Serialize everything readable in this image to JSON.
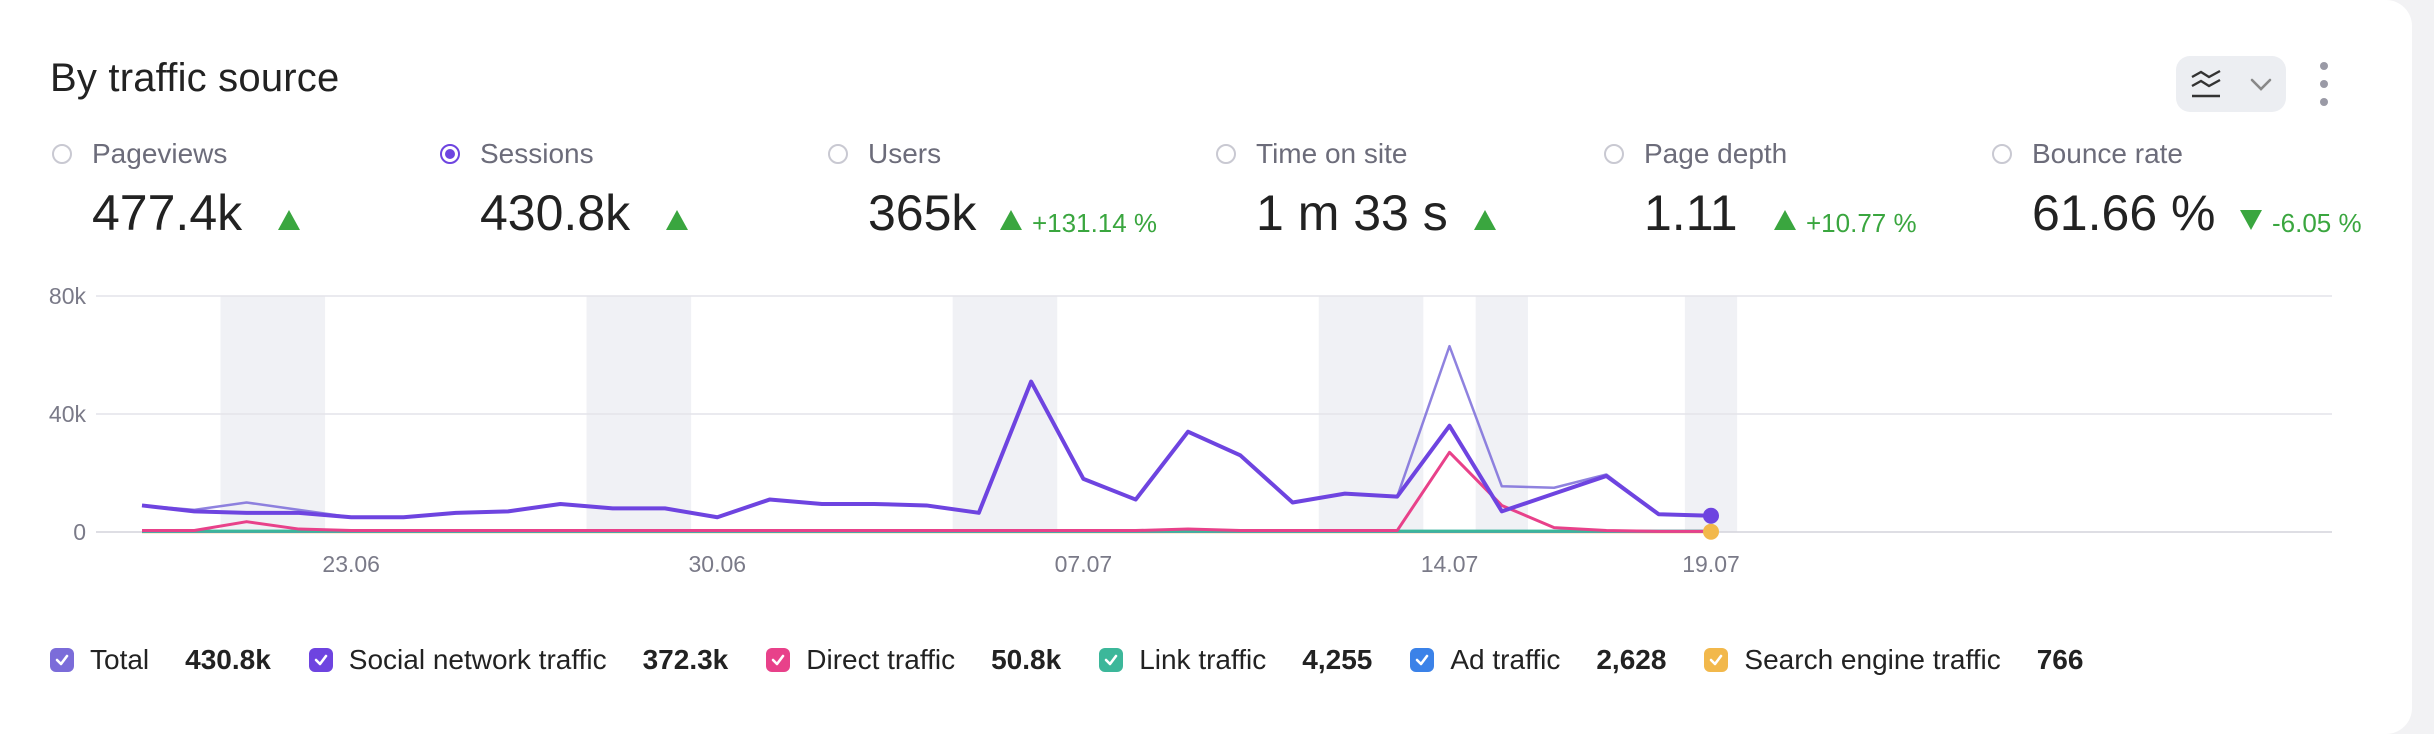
{
  "widget": {
    "title": "By traffic source"
  },
  "metrics": [
    {
      "label": "Pageviews",
      "value": "477.4k",
      "trend": "up",
      "delta": "",
      "selected": false
    },
    {
      "label": "Sessions",
      "value": "430.8k",
      "trend": "up",
      "delta": "",
      "selected": true
    },
    {
      "label": "Users",
      "value": "365k",
      "trend": "up",
      "delta": "+131.14 %",
      "selected": false
    },
    {
      "label": "Time on site",
      "value": "1 m 33 s",
      "trend": "up",
      "delta": "",
      "selected": false
    },
    {
      "label": "Page depth",
      "value": "1.11",
      "trend": "up",
      "delta": "+10.77 %",
      "selected": false
    },
    {
      "label": "Bounce rate",
      "value": "61.66 %",
      "trend": "down",
      "delta": "-6.05 %",
      "selected": false
    }
  ],
  "legend": [
    {
      "name": "Total",
      "value": "430.8k",
      "color": "#7b6cd9"
    },
    {
      "name": "Social network traffic",
      "value": "372.3k",
      "color": "#6e44e0"
    },
    {
      "name": "Direct traffic",
      "value": "50.8k",
      "color": "#e8418a"
    },
    {
      "name": "Link traffic",
      "value": "4,255",
      "color": "#3cb79a"
    },
    {
      "name": "Ad traffic",
      "value": "2,628",
      "color": "#3b82e8"
    },
    {
      "name": "Search engine traffic",
      "value": "766",
      "color": "#f2b84b"
    }
  ],
  "chart_data": {
    "type": "line",
    "x": [
      "19.06",
      "20.06",
      "21.06",
      "22.06",
      "23.06",
      "24.06",
      "25.06",
      "26.06",
      "27.06",
      "28.06",
      "29.06",
      "30.06",
      "01.07",
      "02.07",
      "03.07",
      "04.07",
      "05.07",
      "06.07",
      "07.07",
      "08.07",
      "09.07",
      "10.07",
      "11.07",
      "12.07",
      "13.07",
      "14.07",
      "15.07",
      "16.07",
      "17.07",
      "18.07",
      "19.07"
    ],
    "x_tick_labels": [
      "23.06",
      "30.06",
      "07.07",
      "14.07",
      "19.07"
    ],
    "y_tick_labels": [
      "0",
      "40k",
      "80k"
    ],
    "ylim": [
      0,
      80000
    ],
    "weekend_shading": [
      [
        "21.06",
        "22.06"
      ],
      [
        "28.06",
        "29.06"
      ],
      [
        "05.07",
        "06.07"
      ],
      [
        "12.07",
        "13.07"
      ],
      [
        "15.07",
        "15.07"
      ],
      [
        "19.07",
        "19.07"
      ]
    ],
    "series": [
      {
        "name": "Total",
        "color": "#7b6cd9",
        "values": [
          9000,
          7500,
          10000,
          7500,
          5000,
          5000,
          6500,
          7000,
          9500,
          8000,
          8000,
          5000,
          11000,
          9500,
          9500,
          9000,
          6500,
          51000,
          18000,
          11000,
          34000,
          26000,
          10000,
          13000,
          12000,
          63000,
          15500,
          15000,
          19500,
          6000,
          5500
        ]
      },
      {
        "name": "Social network traffic",
        "color": "#6e44e0",
        "values": [
          9000,
          7000,
          6500,
          6500,
          5000,
          5000,
          6500,
          7000,
          9500,
          8000,
          8000,
          5000,
          11000,
          9500,
          9500,
          9000,
          6500,
          51000,
          18000,
          11000,
          34000,
          26000,
          10000,
          13000,
          12000,
          36000,
          7000,
          13000,
          19000,
          6000,
          5500
        ]
      },
      {
        "name": "Direct traffic",
        "color": "#e8418a",
        "values": [
          500,
          500,
          3500,
          1000,
          500,
          500,
          500,
          500,
          500,
          500,
          500,
          500,
          500,
          500,
          500,
          500,
          500,
          500,
          500,
          500,
          1000,
          500,
          500,
          500,
          500,
          27000,
          9000,
          1500,
          500,
          200,
          200
        ]
      },
      {
        "name": "Link traffic",
        "color": "#3cb79a",
        "values": [
          300,
          300,
          300,
          300,
          300,
          300,
          300,
          300,
          300,
          300,
          300,
          300,
          300,
          300,
          300,
          300,
          300,
          300,
          300,
          300,
          300,
          300,
          300,
          300,
          300,
          300,
          300,
          300,
          300,
          300,
          300
        ]
      },
      {
        "name": "Ad traffic",
        "color": "#3b82e8",
        "values": [
          200,
          200,
          200,
          200,
          200,
          200,
          200,
          200,
          200,
          200,
          200,
          200,
          200,
          200,
          200,
          200,
          200,
          200,
          200,
          200,
          200,
          200,
          200,
          200,
          200,
          200,
          200,
          200,
          200,
          200,
          200
        ]
      },
      {
        "name": "Search engine traffic",
        "color": "#f2b84b",
        "values": [
          100,
          100,
          100,
          100,
          100,
          100,
          100,
          100,
          100,
          100,
          100,
          100,
          100,
          100,
          100,
          100,
          100,
          100,
          100,
          100,
          100,
          100,
          100,
          100,
          100,
          100,
          100,
          100,
          100,
          100,
          100
        ]
      }
    ]
  }
}
